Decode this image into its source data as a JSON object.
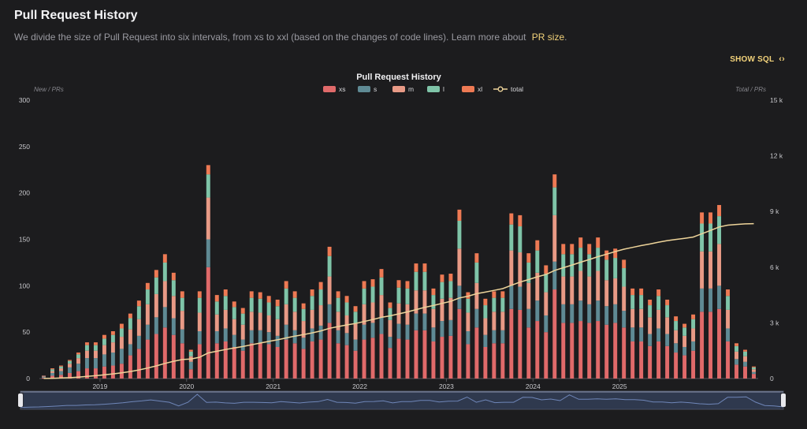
{
  "page": {
    "title": "Pull Request History",
    "description": "We divide the size of Pull Request into six intervals, from xs to xxl (based on the changes of code lines). Learn more about",
    "learn_more_link": "PR size",
    "period": ".",
    "show_sql": "SHOW SQL",
    "show_sql_icon": "code-brackets-icon"
  },
  "chart_data": {
    "type": "bar",
    "stacked": true,
    "title": "Pull Request History",
    "ylabel_left": "New / PRs",
    "ylabel_right": "Total / PRs",
    "ylim": [
      0,
      300
    ],
    "yticks": [
      "0",
      "50",
      "100",
      "150",
      "200",
      "250",
      "300"
    ],
    "ylim_right": [
      0,
      15000
    ],
    "yticks_right": [
      "0",
      "3 k",
      "6 k",
      "9 k",
      "12 k",
      "15 k"
    ],
    "xticks": [
      {
        "label": "2019",
        "index": 7
      },
      {
        "label": "2020",
        "index": 17
      },
      {
        "label": "2021",
        "index": 27
      },
      {
        "label": "2022",
        "index": 37
      },
      {
        "label": "2023",
        "index": 47
      },
      {
        "label": "2024",
        "index": 57
      },
      {
        "label": "2025",
        "index": 67
      }
    ],
    "legend": [
      {
        "name": "xs",
        "color": "#e06a6a"
      },
      {
        "name": "s",
        "color": "#5f8a94"
      },
      {
        "name": "m",
        "color": "#e89a86"
      },
      {
        "name": "l",
        "color": "#7fc4a8"
      },
      {
        "name": "xl",
        "color": "#ee7a54"
      },
      {
        "name": "total",
        "color": "#eed49a"
      }
    ],
    "grid": false,
    "legend_position": "top-center",
    "series": [
      {
        "name": "xs",
        "values": [
          1,
          3,
          4,
          6,
          8,
          11,
          11,
          13,
          14,
          16,
          25,
          32,
          42,
          48,
          55,
          47,
          38,
          10,
          37,
          120,
          38,
          40,
          34,
          30,
          38,
          38,
          37,
          34,
          42,
          38,
          32,
          40,
          42,
          60,
          38,
          36,
          30,
          42,
          44,
          48,
          33,
          43,
          42,
          52,
          52,
          40,
          45,
          46,
          75,
          37,
          55,
          34,
          38,
          38,
          75,
          74,
          55,
          62,
          50,
          96,
          60,
          60,
          62,
          60,
          62,
          58,
          60,
          55,
          40,
          40,
          35,
          40,
          35,
          28,
          25,
          30,
          72,
          72,
          75,
          40,
          15,
          13,
          5
        ]
      },
      {
        "name": "s",
        "values": [
          1,
          3,
          4,
          6,
          8,
          11,
          11,
          13,
          14,
          16,
          12,
          14,
          16,
          18,
          22,
          18,
          15,
          8,
          14,
          30,
          13,
          14,
          13,
          12,
          14,
          14,
          13,
          12,
          16,
          14,
          12,
          14,
          15,
          20,
          14,
          13,
          12,
          16,
          16,
          18,
          12,
          16,
          16,
          18,
          18,
          15,
          17,
          17,
          25,
          14,
          20,
          13,
          14,
          14,
          25,
          25,
          20,
          22,
          18,
          30,
          20,
          20,
          22,
          20,
          22,
          20,
          20,
          18,
          15,
          15,
          13,
          14,
          13,
          10,
          9,
          10,
          25,
          25,
          25,
          14,
          6,
          5,
          2
        ]
      },
      {
        "name": "m",
        "values": [
          1,
          2,
          3,
          4,
          6,
          8,
          8,
          10,
          11,
          13,
          16,
          18,
          22,
          25,
          28,
          24,
          20,
          6,
          20,
          45,
          18,
          20,
          17,
          16,
          20,
          19,
          18,
          18,
          22,
          20,
          18,
          20,
          22,
          30,
          20,
          19,
          17,
          22,
          22,
          24,
          18,
          22,
          22,
          25,
          25,
          20,
          24,
          24,
          40,
          20,
          28,
          18,
          20,
          20,
          38,
          37,
          28,
          30,
          25,
          50,
          30,
          30,
          32,
          30,
          32,
          28,
          28,
          26,
          20,
          20,
          18,
          20,
          18,
          14,
          12,
          14,
          40,
          40,
          45,
          20,
          8,
          6,
          3
        ]
      },
      {
        "name": "l",
        "values": [
          0,
          2,
          2,
          3,
          4,
          6,
          6,
          7,
          8,
          9,
          12,
          14,
          16,
          18,
          20,
          17,
          14,
          5,
          16,
          25,
          14,
          15,
          13,
          12,
          15,
          15,
          14,
          14,
          17,
          15,
          13,
          15,
          17,
          22,
          15,
          14,
          13,
          17,
          17,
          19,
          13,
          17,
          17,
          20,
          20,
          15,
          18,
          18,
          30,
          15,
          22,
          14,
          15,
          15,
          28,
          28,
          22,
          24,
          20,
          30,
          24,
          24,
          25,
          24,
          25,
          22,
          22,
          20,
          15,
          15,
          13,
          15,
          13,
          10,
          9,
          10,
          30,
          30,
          30,
          15,
          6,
          5,
          2
        ]
      },
      {
        "name": "xl",
        "values": [
          0,
          1,
          1,
          1,
          2,
          3,
          3,
          4,
          4,
          5,
          5,
          6,
          7,
          8,
          9,
          8,
          7,
          2,
          7,
          10,
          7,
          7,
          6,
          6,
          7,
          7,
          7,
          7,
          8,
          7,
          6,
          7,
          8,
          10,
          7,
          7,
          6,
          8,
          8,
          9,
          6,
          8,
          8,
          9,
          9,
          7,
          8,
          8,
          12,
          7,
          10,
          7,
          7,
          7,
          12,
          12,
          10,
          11,
          9,
          14,
          11,
          11,
          11,
          11,
          11,
          10,
          10,
          9,
          7,
          7,
          6,
          7,
          6,
          5,
          4,
          5,
          12,
          12,
          12,
          7,
          3,
          2,
          1
        ]
      }
    ],
    "total": [
      3,
      14,
      28,
      48,
      76,
      115,
      154,
      201,
      249,
      308,
      378,
      462,
      565,
      682,
      816,
      930,
      1024,
      1055,
      1149,
      1379,
      1469,
      1565,
      1648,
      1724,
      1818,
      1911,
      2000,
      2085,
      2190,
      2284,
      2365,
      2461,
      2565,
      2707,
      2801,
      2890,
      2968,
      3073,
      3180,
      3298,
      3380,
      3486,
      3591,
      3715,
      3839,
      3936,
      4048,
      4161,
      4343,
      4436,
      4571,
      4657,
      4751,
      4845,
      5023,
      5199,
      5334,
      5483,
      5605,
      5825,
      5970,
      6115,
      6267,
      6412,
      6564,
      6702,
      6842,
      6970,
      7067,
      7164,
      7249,
      7345,
      7430,
      7497,
      7556,
      7625,
      7802,
      7981,
      8168,
      8264,
      8302,
      8333,
      8346
    ]
  }
}
